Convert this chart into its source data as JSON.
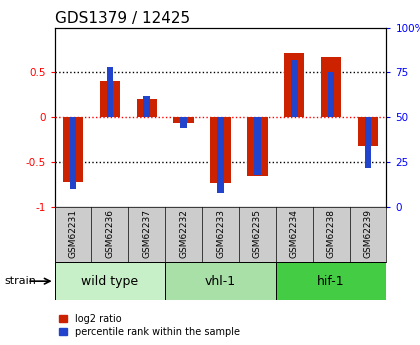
{
  "title": "GDS1379 / 12425",
  "samples": [
    "GSM62231",
    "GSM62236",
    "GSM62237",
    "GSM62232",
    "GSM62233",
    "GSM62235",
    "GSM62234",
    "GSM62238",
    "GSM62239"
  ],
  "log2_ratio": [
    -0.72,
    0.4,
    0.2,
    -0.06,
    -0.73,
    -0.65,
    0.72,
    0.67,
    -0.32
  ],
  "percentile_rank": [
    10,
    78,
    62,
    44,
    8,
    18,
    82,
    75,
    22
  ],
  "groups": [
    {
      "label": "wild type",
      "start": 0,
      "end": 3,
      "color": "#c8f0c8"
    },
    {
      "label": "vhl-1",
      "start": 3,
      "end": 6,
      "color": "#a8e0a8"
    },
    {
      "label": "hif-1",
      "start": 6,
      "end": 9,
      "color": "#44cc44"
    }
  ],
  "strain_label": "strain",
  "ylim_left": [
    -1,
    1
  ],
  "ylim_right": [
    0,
    100
  ],
  "yticks_left": [
    -1,
    -0.5,
    0,
    0.5
  ],
  "yticks_right": [
    0,
    25,
    50,
    75,
    100
  ],
  "ytick_labels_left": [
    "-1",
    "-0.5",
    "0",
    "0.5"
  ],
  "ytick_labels_right": [
    "0",
    "25",
    "50",
    "75",
    "100%"
  ],
  "hline_dotted_black": [
    -0.5,
    0.5
  ],
  "hline_dotted_red": [
    0
  ],
  "bar_color_red": "#cc2200",
  "bar_color_blue": "#2244cc",
  "legend_red": "log2 ratio",
  "legend_blue": "percentile rank within the sample",
  "bar_width": 0.55,
  "blue_bar_width": 0.18,
  "background_color": "#ffffff",
  "sample_label_bg": "#cccccc",
  "title_fontsize": 11,
  "tick_fontsize": 7.5,
  "group_fontsize": 9,
  "label_fontsize": 6.5
}
